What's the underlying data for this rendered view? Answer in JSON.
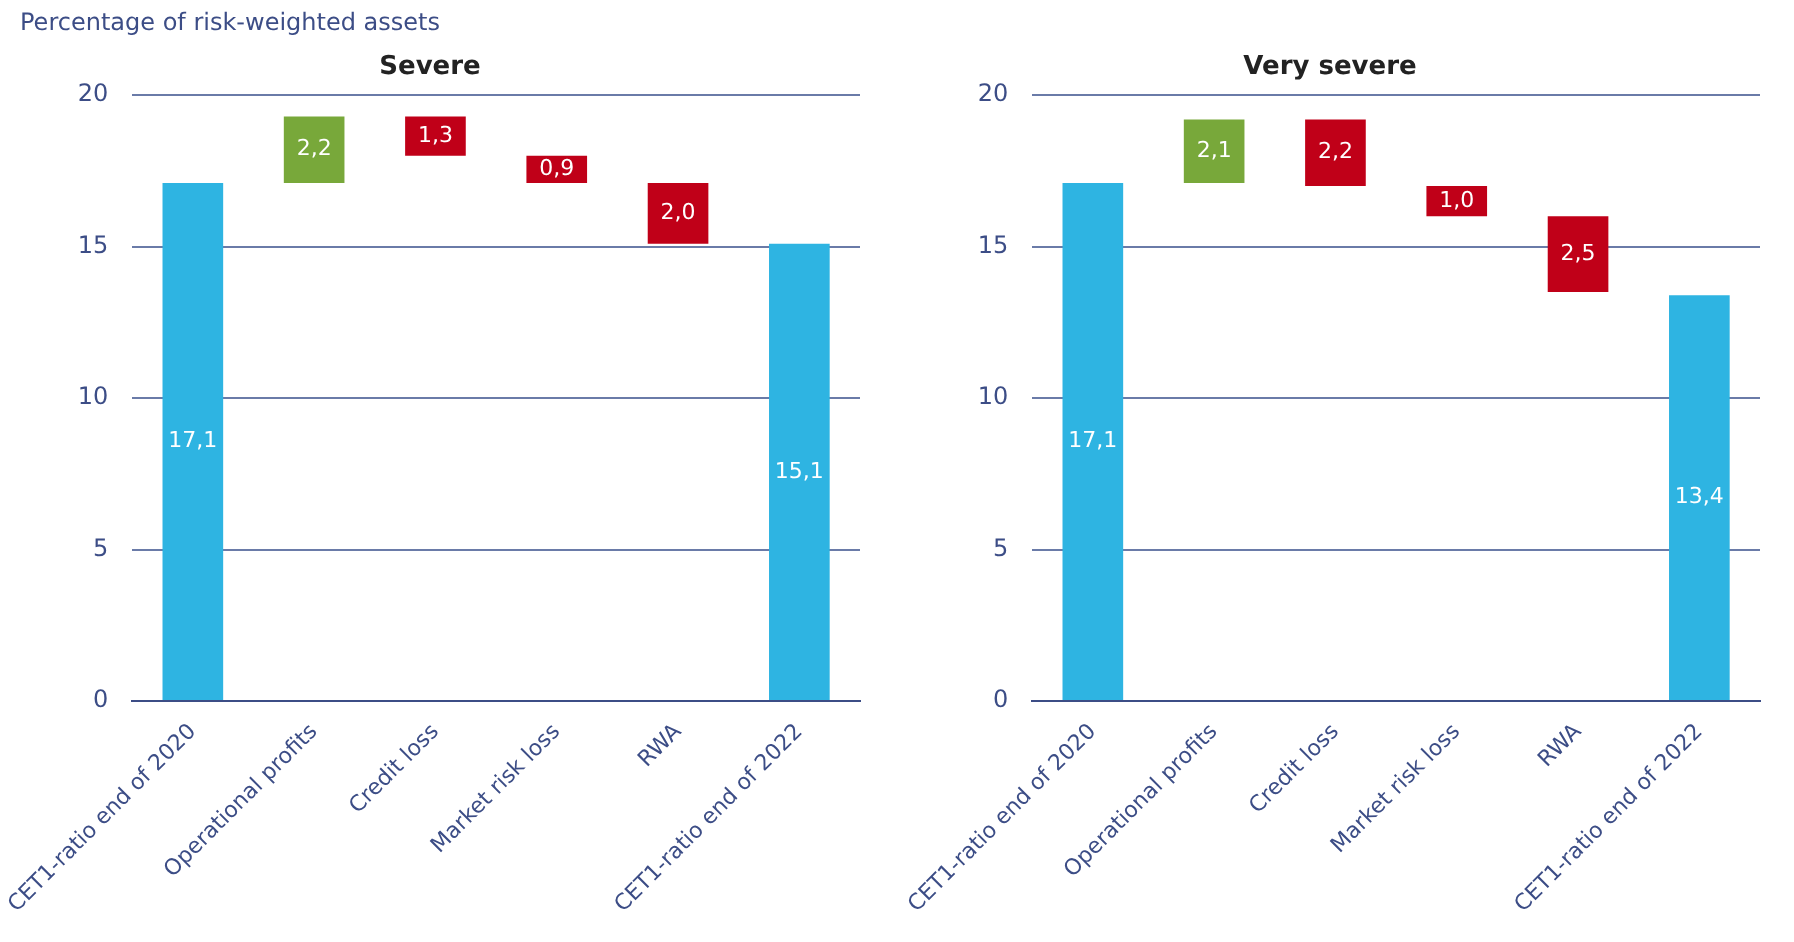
{
  "chart_data": [
    {
      "type": "bar",
      "title": "Severe",
      "ylabel": "Percentage of risk-weighted assets",
      "categories": [
        "CET1-ratio end of 2020",
        "Operational profits",
        "Credit loss",
        "Market risk loss",
        "RWA",
        "CET1-ratio end of 2022"
      ],
      "values": [
        17.1,
        2.2,
        -1.3,
        -0.9,
        -2.0,
        15.1
      ],
      "base": [
        0,
        17.1,
        19.3,
        18.0,
        17.1,
        0
      ],
      "colors": [
        "#2eb4e2",
        "#78a83a",
        "#c00018",
        "#c00018",
        "#c00018",
        "#2eb4e2"
      ],
      "value_labels": [
        "17,1",
        "2,2",
        "1,3",
        "0,9",
        "2,0",
        "15,1"
      ],
      "ylim": [
        0,
        20
      ],
      "yticks": [
        0,
        5,
        10,
        15,
        20
      ],
      "grid": "y",
      "legend": false
    },
    {
      "type": "bar",
      "title": "Very severe",
      "categories": [
        "CET1-ratio end of 2020",
        "Operational profits",
        "Credit loss",
        "Market risk loss",
        "RWA",
        "CET1-ratio end of 2022"
      ],
      "values": [
        17.1,
        2.1,
        -2.2,
        -1.0,
        -2.5,
        13.4
      ],
      "base": [
        0,
        17.1,
        19.2,
        17.0,
        16.0,
        0
      ],
      "colors": [
        "#2eb4e2",
        "#78a83a",
        "#c00018",
        "#c00018",
        "#c00018",
        "#2eb4e2"
      ],
      "value_labels": [
        "17,1",
        "2,1",
        "2,2",
        "1,0",
        "2,5",
        "13,4"
      ],
      "ylim": [
        0,
        20
      ],
      "yticks": [
        0,
        5,
        10,
        15,
        20
      ],
      "grid": "y",
      "legend": false
    }
  ]
}
